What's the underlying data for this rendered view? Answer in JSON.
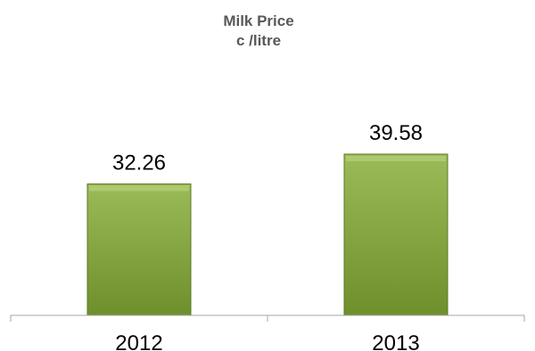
{
  "chart_data": {
    "type": "bar",
    "title_lines": [
      "Milk Price",
      "c /litre"
    ],
    "categories": [
      "2012",
      "2013"
    ],
    "values": [
      32.26,
      39.58
    ],
    "value_labels": [
      "32.26",
      "39.58"
    ],
    "ylim": [
      0,
      40
    ],
    "grid": false,
    "legend": "none",
    "colors": {
      "bar_top": "#9BBB59",
      "bar_bottom": "#6E8F2C",
      "bar_border": "#5C7A22",
      "axis": "#A6A6A6"
    }
  }
}
